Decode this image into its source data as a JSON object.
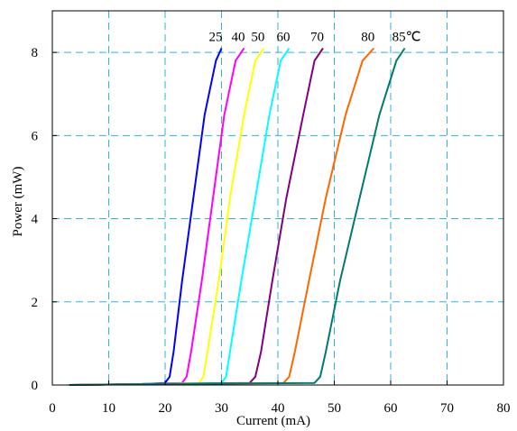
{
  "chart_data": {
    "type": "line",
    "title": "",
    "xlabel": "Current (mA)",
    "ylabel": "Power (mW)",
    "xlim": [
      0,
      80
    ],
    "ylim": [
      0,
      9
    ],
    "xticks": [
      0,
      10,
      20,
      30,
      40,
      50,
      60,
      70,
      80
    ],
    "yticks": [
      0,
      2,
      4,
      6,
      8
    ],
    "grid": "dashed",
    "grid_color": "#2fb3d6",
    "series": [
      {
        "name": "25",
        "color": "#0000ff",
        "x": [
          3,
          15,
          20,
          20.8,
          21.5,
          23,
          25,
          27,
          29,
          30
        ],
        "y": [
          0,
          0.02,
          0.05,
          0.2,
          0.8,
          2.5,
          4.5,
          6.5,
          7.8,
          8.1
        ]
      },
      {
        "name": "40",
        "color": "#ff00ff",
        "x": [
          3,
          15,
          23,
          23.8,
          24.6,
          26.5,
          28.5,
          30.5,
          32.5,
          34
        ],
        "y": [
          0,
          0.02,
          0.05,
          0.2,
          0.8,
          2.5,
          4.5,
          6.5,
          7.8,
          8.1
        ]
      },
      {
        "name": "50",
        "color": "#ffff00",
        "x": [
          3,
          15,
          26,
          26.8,
          27.5,
          29.5,
          31.5,
          34,
          36,
          37.5
        ],
        "y": [
          0,
          0.02,
          0.05,
          0.2,
          0.8,
          2.5,
          4.5,
          6.5,
          7.8,
          8.1
        ]
      },
      {
        "name": "60",
        "color": "#00ffff",
        "x": [
          3,
          15,
          30,
          30.8,
          31.5,
          33.5,
          36,
          38.5,
          40.5,
          42
        ],
        "y": [
          0,
          0.02,
          0.05,
          0.2,
          0.8,
          2.5,
          4.5,
          6.5,
          7.8,
          8.1
        ]
      },
      {
        "name": "70",
        "color": "#800080",
        "x": [
          3,
          15,
          35,
          36,
          37,
          39,
          41.5,
          44.5,
          46.5,
          48
        ],
        "y": [
          0,
          0.02,
          0.05,
          0.2,
          0.8,
          2.5,
          4.5,
          6.5,
          7.8,
          8.1
        ]
      },
      {
        "name": "80",
        "color": "#ff6600",
        "x": [
          3,
          15,
          41,
          42,
          43,
          45.5,
          48.5,
          52,
          55,
          57
        ],
        "y": [
          0,
          0.02,
          0.05,
          0.2,
          0.8,
          2.5,
          4.5,
          6.5,
          7.8,
          8.1
        ]
      },
      {
        "name": "85℃",
        "color": "#007a6e",
        "x": [
          3,
          15,
          46.5,
          47.5,
          48.5,
          51,
          54.5,
          58,
          61,
          62.5
        ],
        "y": [
          0,
          0.02,
          0.05,
          0.2,
          0.8,
          2.5,
          4.5,
          6.5,
          7.8,
          8.1
        ]
      }
    ]
  }
}
